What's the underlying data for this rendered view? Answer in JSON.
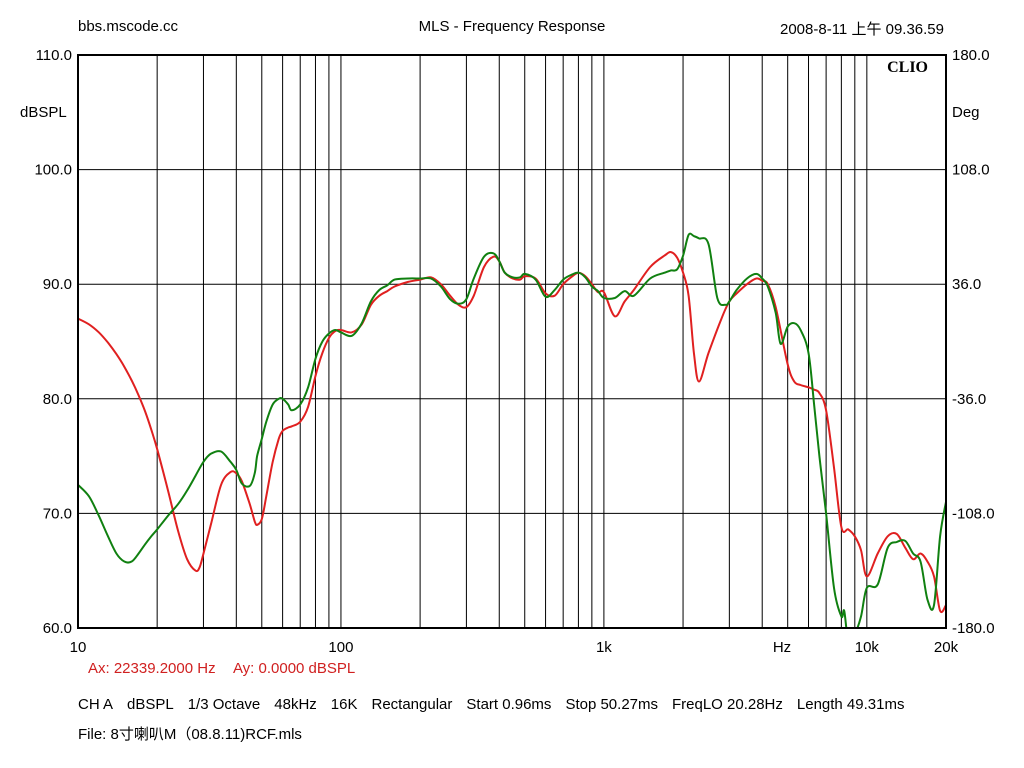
{
  "header": {
    "left": "bbs.mscode.cc",
    "center": "MLS - Frequency Response",
    "right": "2008-8-11 上午 09.36.59"
  },
  "brand": "CLIO",
  "readout": {
    "ax": "Ax: 22339.2000 Hz",
    "ay": "Ay: 0.0000 dBSPL"
  },
  "info": {
    "line1": [
      "CH A",
      "dBSPL",
      "1/3 Octave",
      "48kHz",
      "16K",
      "Rectangular",
      "Start 0.96ms",
      "Stop 50.27ms",
      "FreqLO 20.28Hz",
      "Length 49.31ms"
    ],
    "line2": "File: 8寸喇叭M（08.8.11)RCF.mls"
  },
  "colors": {
    "red": "#e02020",
    "green": "#108010",
    "grid": "#000000",
    "readout": "#d02020"
  },
  "chart_data": {
    "type": "line",
    "title": "MLS - Frequency Response",
    "x_scale": "log",
    "xlim": [
      10,
      20000
    ],
    "ylim": [
      60,
      110
    ],
    "y2lim": [
      -180,
      180
    ],
    "ylabel": "dBSPL",
    "y2label": "Deg",
    "xlabel": "Hz",
    "grid": true,
    "x_ticks": [
      {
        "v": 10,
        "label": "10"
      },
      {
        "v": 100,
        "label": "100"
      },
      {
        "v": 1000,
        "label": "1k"
      },
      {
        "v": 10000,
        "label": "10k"
      },
      {
        "v": 20000,
        "label": "20k"
      }
    ],
    "y_ticks": [
      "60.0",
      "70.0",
      "80.0",
      "90.0",
      "100.0",
      "110.0"
    ],
    "y2_ticks": [
      "-180.0",
      "-108.0",
      "-36.0",
      "36.0",
      "108.0",
      "180.0"
    ],
    "series": [
      {
        "color": "#e02020",
        "x": [
          10,
          11,
          12,
          13,
          14,
          15,
          16,
          17,
          18,
          19,
          20,
          22,
          24,
          26,
          28,
          29,
          30,
          32,
          35,
          38,
          40,
          42,
          45,
          47,
          48,
          50,
          52,
          55,
          58,
          60,
          63,
          65,
          70,
          75,
          80,
          85,
          90,
          95,
          100,
          110,
          120,
          130,
          140,
          150,
          160,
          180,
          200,
          220,
          240,
          260,
          280,
          300,
          320,
          350,
          380,
          400,
          420,
          450,
          480,
          500,
          550,
          600,
          650,
          700,
          750,
          800,
          850,
          900,
          950,
          1000,
          1100,
          1200,
          1300,
          1500,
          1700,
          1800,
          1900,
          2000,
          2100,
          2200,
          2300,
          2500,
          2800,
          3000,
          3200,
          3500,
          3800,
          4000,
          4200,
          4500,
          5000,
          5300,
          5600,
          6000,
          6300,
          6600,
          7000,
          7500,
          8000,
          8500,
          9000,
          9500,
          10000,
          11000,
          12000,
          13000,
          14000,
          15000,
          16000,
          17000,
          18000,
          19000,
          20000
        ],
        "y": [
          87.0,
          86.5,
          85.8,
          84.9,
          83.9,
          82.8,
          81.6,
          80.3,
          78.9,
          77.3,
          75.6,
          72.0,
          68.5,
          66.0,
          65.0,
          65.3,
          66.5,
          69.0,
          72.5,
          73.6,
          73.5,
          72.8,
          70.8,
          69.3,
          69.0,
          69.5,
          71.5,
          74.5,
          76.5,
          77.2,
          77.5,
          77.6,
          78.0,
          79.3,
          82.0,
          84.0,
          85.3,
          85.9,
          86.0,
          85.8,
          86.5,
          88.2,
          89.0,
          89.4,
          89.8,
          90.2,
          90.4,
          90.6,
          90.0,
          89.0,
          88.2,
          88.0,
          89.0,
          91.5,
          92.4,
          92.0,
          91.0,
          90.5,
          90.4,
          90.7,
          90.5,
          89.2,
          89.0,
          90.0,
          90.6,
          91.0,
          90.7,
          90.0,
          89.3,
          89.3,
          87.2,
          88.5,
          89.5,
          91.5,
          92.5,
          92.8,
          92.3,
          91.0,
          89.0,
          84.0,
          81.5,
          84.0,
          87.0,
          88.5,
          89.2,
          90.0,
          90.5,
          90.3,
          90.0,
          88.0,
          83.0,
          81.5,
          81.2,
          81.0,
          80.8,
          80.5,
          79.0,
          74.0,
          68.8,
          68.6,
          68.0,
          66.8,
          64.5,
          66.5,
          68.0,
          68.2,
          67.0,
          66.0,
          66.5,
          65.8,
          64.5,
          61.5,
          62.0
        ]
      },
      {
        "color": "#108010",
        "x": [
          10,
          11,
          12,
          13,
          14,
          15,
          16,
          17,
          18,
          19,
          20,
          22,
          24,
          26,
          28,
          30,
          32,
          35,
          38,
          40,
          42,
          45,
          47,
          48,
          50,
          52,
          55,
          58,
          60,
          63,
          65,
          70,
          75,
          80,
          85,
          90,
          95,
          100,
          110,
          120,
          130,
          140,
          150,
          160,
          180,
          200,
          220,
          240,
          260,
          280,
          300,
          320,
          350,
          380,
          400,
          420,
          450,
          480,
          500,
          550,
          600,
          650,
          700,
          750,
          800,
          850,
          900,
          950,
          1000,
          1100,
          1200,
          1300,
          1500,
          1700,
          1800,
          1900,
          2000,
          2100,
          2200,
          2300,
          2500,
          2700,
          2900,
          3000,
          3200,
          3500,
          3800,
          4000,
          4200,
          4500,
          4700,
          5000,
          5300,
          5600,
          6000,
          6300,
          6600,
          7000,
          7500,
          8000,
          8200,
          8500,
          9000,
          9500,
          10000,
          11000,
          12000,
          13000,
          14000,
          15000,
          16000,
          17000,
          18000,
          19000,
          20000
        ],
        "y": [
          72.5,
          71.5,
          69.8,
          68.0,
          66.5,
          65.8,
          65.8,
          66.5,
          67.3,
          68.0,
          68.6,
          69.8,
          70.8,
          72.0,
          73.3,
          74.5,
          75.2,
          75.4,
          74.5,
          73.8,
          72.6,
          72.4,
          73.5,
          75.0,
          76.5,
          78.0,
          79.5,
          80.0,
          80.0,
          79.5,
          79.0,
          79.5,
          81.0,
          83.5,
          85.0,
          85.7,
          86.0,
          85.8,
          85.5,
          86.6,
          88.5,
          89.5,
          89.9,
          90.4,
          90.5,
          90.5,
          90.5,
          89.8,
          88.7,
          88.3,
          88.7,
          90.5,
          92.4,
          92.7,
          92.0,
          91.0,
          90.6,
          90.6,
          90.9,
          90.4,
          88.9,
          89.5,
          90.4,
          90.8,
          91.0,
          90.6,
          89.8,
          89.4,
          88.8,
          88.8,
          89.4,
          89.0,
          90.5,
          91.0,
          91.2,
          91.3,
          92.5,
          94.3,
          94.2,
          94.0,
          93.5,
          88.8,
          88.2,
          88.5,
          89.5,
          90.5,
          90.9,
          90.5,
          89.8,
          87.5,
          84.8,
          86.3,
          86.6,
          86.0,
          84.0,
          79.5,
          75.0,
          70.0,
          63.5,
          61.0,
          61.5,
          59.0,
          59.5,
          61.0,
          63.5,
          63.8,
          67.0,
          67.5,
          67.6,
          66.5,
          65.8,
          62.5,
          62.0,
          68.0,
          71.0
        ]
      }
    ]
  }
}
